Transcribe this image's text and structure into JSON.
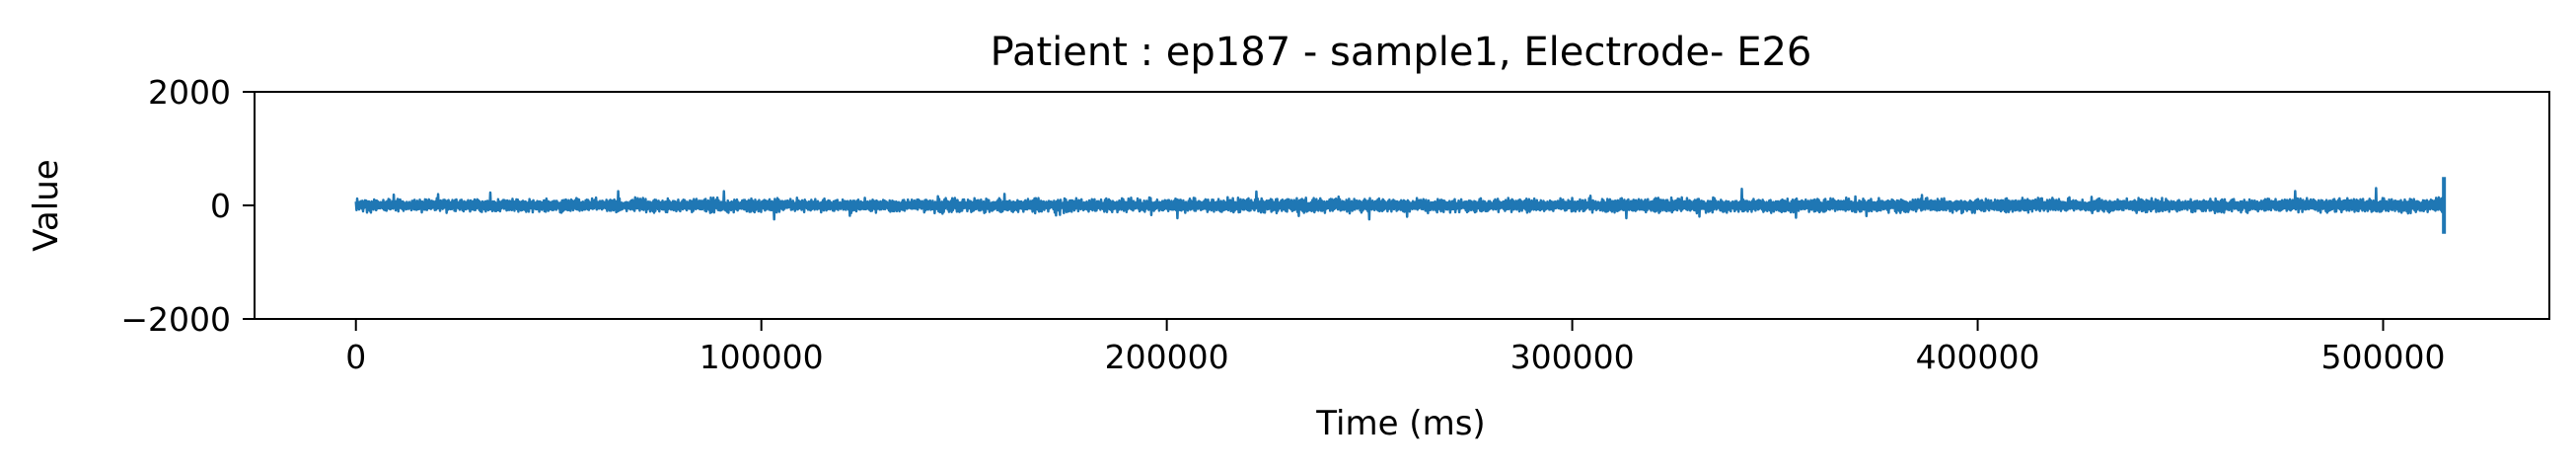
{
  "chart_data": {
    "type": "line",
    "title": "Patient : ep187 - sample1, Electrode- E26",
    "xlabel": "Time (ms)",
    "ylabel": "Value",
    "xlim": [
      -25000,
      541000
    ],
    "ylim": [
      -2000,
      2000
    ],
    "x_ticks": [
      0,
      100000,
      200000,
      300000,
      400000,
      500000
    ],
    "x_tick_labels": [
      "0",
      "100000",
      "200000",
      "300000",
      "400000",
      "500000"
    ],
    "y_ticks": [
      -2000,
      0,
      2000
    ],
    "y_tick_labels": [
      "−2000",
      "0",
      "2000"
    ],
    "grid": false,
    "legend": "none",
    "series": [
      {
        "color": "#1f77b4",
        "x_range": [
          0,
          515000
        ],
        "baseline": 0,
        "typical_amplitude": 120,
        "peaks": [
          {
            "x": 515000,
            "min": -500,
            "max": 500
          }
        ]
      }
    ]
  }
}
